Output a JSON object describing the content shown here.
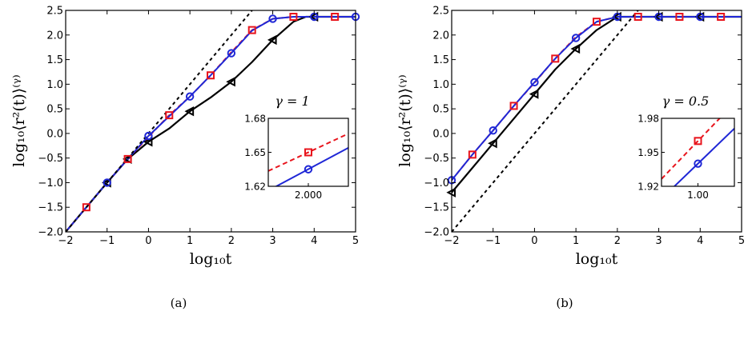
{
  "colors": {
    "black": "#000000",
    "red": "#e8141c",
    "blue": "#1f27d6"
  },
  "chart_data": [
    {
      "type": "line",
      "panel_caption": "(a)",
      "annotation": "γ = 1",
      "xlabel": "log₁₀t",
      "ylabel": "log₁₀⟨r²(t)⟩⁽ᵞ⁾",
      "xlim": [
        -2,
        5
      ],
      "ylim": [
        -2,
        2.5
      ],
      "xticks": [
        "−2",
        "−1",
        "0",
        "1",
        "2",
        "3",
        "4",
        "5"
      ],
      "yticks": [
        "−2.0",
        "−1.5",
        "−1.0",
        "−0.5",
        "0.0",
        "0.5",
        "1.0",
        "1.5",
        "2.0",
        "2.5"
      ],
      "series": [
        {
          "style": "black-solid-triangle",
          "x": [
            -2,
            -1.5,
            -1,
            -0.5,
            0,
            0.5,
            1,
            1.5,
            2,
            2.5,
            3,
            3.5,
            3.8,
            4,
            4.5,
            5
          ],
          "y": [
            -2,
            -1.5,
            -1.0,
            -0.52,
            -0.17,
            0.1,
            0.45,
            0.73,
            1.05,
            1.45,
            1.9,
            2.27,
            2.37,
            2.37,
            2.37,
            2.37
          ],
          "marker_x": [
            -1,
            -0.5,
            0,
            1,
            2,
            3,
            4
          ]
        },
        {
          "style": "red-dashed-square",
          "x": [
            -2,
            -1.5,
            -1,
            -0.5,
            0,
            0.5,
            1,
            1.5,
            2,
            2.5,
            3,
            3.5,
            4,
            4.5,
            5
          ],
          "y": [
            -2,
            -1.5,
            -1.0,
            -0.52,
            -0.07,
            0.37,
            0.75,
            1.18,
            1.65,
            2.1,
            2.33,
            2.37,
            2.37,
            2.37,
            2.37
          ],
          "marker_x": [
            -1.5,
            -0.5,
            0.5,
            1.5,
            2.5,
            3.5,
            4.5
          ]
        },
        {
          "style": "blue-solid-circle",
          "x": [
            -2,
            -1.5,
            -1,
            -0.5,
            0,
            0.5,
            1,
            1.5,
            2,
            2.5,
            3,
            3.5,
            4,
            4.5,
            5
          ],
          "y": [
            -2,
            -1.5,
            -1.0,
            -0.52,
            -0.05,
            0.35,
            0.75,
            1.18,
            1.63,
            2.09,
            2.33,
            2.37,
            2.37,
            2.37,
            2.37
          ],
          "marker_x": [
            -1,
            0,
            1,
            2,
            3,
            4,
            5
          ]
        },
        {
          "style": "black-dotted-reference",
          "x": [
            -2,
            2.5
          ],
          "y": [
            -2,
            2.5
          ]
        }
      ],
      "inset": {
        "xlim": [
          1.97,
          2.03
        ],
        "ylim": [
          1.62,
          1.68
        ],
        "xticks": [
          {
            "v": 2.0,
            "label": "2.000"
          }
        ],
        "yticks": [
          {
            "v": 1.62,
            "label": "1.62"
          },
          {
            "v": 1.65,
            "label": "1.65"
          },
          {
            "v": 1.68,
            "label": "1.68"
          }
        ],
        "red": {
          "x": [
            1.97,
            2.03
          ],
          "y": [
            1.6335,
            1.6665
          ]
        },
        "blue": {
          "x": [
            1.97,
            2.03
          ],
          "y": [
            1.6162,
            1.654
          ]
        },
        "red_marker": [
          2.0,
          1.65
        ],
        "blue_marker": [
          2.0,
          1.635
        ]
      }
    },
    {
      "type": "line",
      "panel_caption": "(b)",
      "annotation": "γ = 0.5",
      "xlabel": "log₁₀t",
      "ylabel": "log₁₀⟨r²(t)⟩⁽ᵞ⁾",
      "xlim": [
        -2,
        5
      ],
      "ylim": [
        -2,
        2.5
      ],
      "xticks": [
        "−2",
        "−1",
        "0",
        "1",
        "2",
        "3",
        "4",
        "5"
      ],
      "yticks": [
        "−2.0",
        "−1.5",
        "−1.0",
        "−0.5",
        "0.0",
        "0.5",
        "1.0",
        "1.5",
        "2.0",
        "2.5"
      ],
      "series": [
        {
          "style": "black-solid-triangle",
          "x": [
            -2,
            -1.5,
            -1,
            -0.5,
            0,
            0.5,
            1,
            1.5,
            2,
            2.5,
            3,
            3.5,
            4,
            4.5,
            5
          ],
          "y": [
            -1.2,
            -0.7,
            -0.2,
            0.3,
            0.8,
            1.3,
            1.72,
            2.1,
            2.37,
            2.37,
            2.37,
            2.37,
            2.37,
            2.37,
            2.37
          ],
          "marker_x": [
            -2,
            -1,
            0,
            1,
            2,
            3,
            4
          ]
        },
        {
          "style": "red-dashed-square",
          "x": [
            -2,
            -1.5,
            -1,
            -0.5,
            0,
            0.5,
            1,
            1.5,
            2,
            2.5,
            3,
            3.5,
            4,
            4.5,
            5
          ],
          "y": [
            -0.95,
            -0.43,
            0.06,
            0.56,
            1.03,
            1.52,
            1.96,
            2.27,
            2.37,
            2.37,
            2.37,
            2.37,
            2.37,
            2.37,
            2.37
          ],
          "marker_x": [
            -1.5,
            -0.5,
            0.5,
            1.5,
            2.5,
            3.5,
            4.5
          ]
        },
        {
          "style": "blue-solid-circle",
          "x": [
            -2,
            -1.5,
            -1,
            -0.5,
            0,
            0.5,
            1,
            1.5,
            2,
            2.5,
            3,
            3.5,
            4,
            4.5,
            5
          ],
          "y": [
            -0.95,
            -0.43,
            0.06,
            0.56,
            1.04,
            1.52,
            1.94,
            2.27,
            2.37,
            2.37,
            2.37,
            2.37,
            2.37,
            2.37,
            2.37
          ],
          "marker_x": [
            -2,
            -1,
            0,
            1,
            2,
            3,
            4
          ]
        },
        {
          "style": "black-dotted-reference",
          "x": [
            -2,
            2.5
          ],
          "y": [
            -2.0,
            2.5
          ]
        }
      ],
      "inset": {
        "xlim": [
          0.97,
          1.03
        ],
        "ylim": [
          1.92,
          1.98
        ],
        "xticks": [
          {
            "v": 1.0,
            "label": "1.00"
          }
        ],
        "yticks": [
          {
            "v": 1.92,
            "label": "1.92"
          },
          {
            "v": 1.95,
            "label": "1.95"
          },
          {
            "v": 1.98,
            "label": "1.98"
          }
        ],
        "red": {
          "x": [
            0.97,
            1.03
          ],
          "y": [
            1.9265,
            1.9935
          ]
        },
        "blue": {
          "x": [
            0.97,
            1.03
          ],
          "y": [
            1.909,
            1.971
          ]
        },
        "red_marker": [
          1.0,
          1.96
        ],
        "blue_marker": [
          1.0,
          1.94
        ]
      }
    }
  ]
}
